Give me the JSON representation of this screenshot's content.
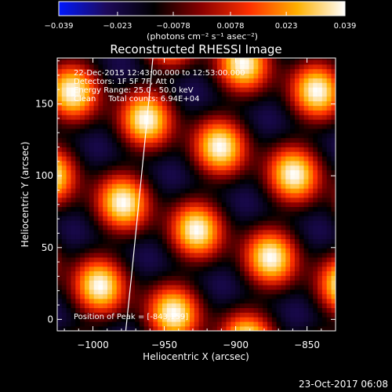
{
  "colorbar": {
    "ticks": [
      -0.039,
      -0.023,
      -0.0078,
      0.0078,
      0.023,
      0.039
    ],
    "tick_labels": [
      "−0.039",
      "−0.023",
      "−0.0078",
      "0.0078",
      "0.023",
      "0.039"
    ],
    "units_label": "(photons cm⁻² s⁻¹ asec⁻²)",
    "range": [
      -0.039,
      0.039
    ],
    "colors": [
      "#0018ff",
      "#1d0a5a",
      "#000000",
      "#8b0000",
      "#ff3000",
      "#ffb000",
      "#ffffff"
    ]
  },
  "chart_data": {
    "type": "heatmap",
    "title": "Reconstructed RHESSI Image",
    "xlabel": "Heliocentric X (arcsec)",
    "ylabel": "Heliocentric Y (arcsec)",
    "xlim": [
      -1025,
      -830
    ],
    "ylim": [
      -8,
      182
    ],
    "xticks": [
      -1000,
      -950,
      -900,
      -850
    ],
    "xtick_labels": [
      "−1000",
      "−950",
      "−900",
      "−850"
    ],
    "yticks": [
      0,
      50,
      100,
      150
    ],
    "ytick_labels": [
      "0",
      "50",
      "100",
      "150"
    ],
    "value_range": [
      -0.039,
      0.039
    ],
    "pattern": {
      "lobe_1": {
        "direction": [
          0.37,
          1.0
        ],
        "wavelength": 60
      },
      "lobe_2": {
        "direction": [
          1.0,
          -0.28
        ],
        "wavelength": 55
      },
      "phase_reference": [
        -843,
        159
      ]
    },
    "annotations": [
      "22-Dec-2015 12:43:00.000 to 12:53:00.000",
      "Detectors: 1F 5F 7F, Att 0",
      "Energy Range: 25.0 - 50.0 keV",
      "Clean     Total counts: 6.94E+04"
    ],
    "peak_label": "Position of Peak = [-843,159]",
    "limb_curve": [
      [
        -977,
        -8
      ],
      [
        -973,
        30
      ],
      [
        -968,
        80
      ],
      [
        -963,
        130
      ],
      [
        -958,
        182
      ]
    ],
    "timestamp": "23-Oct-2017 06:08"
  }
}
